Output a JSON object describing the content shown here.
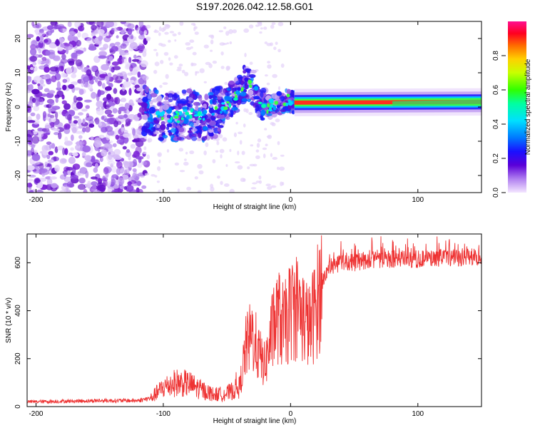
{
  "title": "S197.2026.042.12.58.G01",
  "colors": {
    "snr_line": "#ee3333",
    "axis": "#000000",
    "scatter_purple": "#7a1fd6",
    "scatter_light": "#c9a8f2"
  },
  "chart_data": [
    {
      "type": "heatmap",
      "xlabel": "Height of straight line (km)",
      "ylabel": "Frequency (Hz)",
      "xlim": [
        -207,
        150
      ],
      "ylim": [
        -25,
        25
      ],
      "xticks": [
        -200,
        -100,
        0,
        100
      ],
      "yticks": [
        -20,
        -10,
        0,
        10,
        20
      ],
      "ridge": [
        {
          "x": -110,
          "y": -1
        },
        {
          "x": -100,
          "y": -3
        },
        {
          "x": -90,
          "y": -3
        },
        {
          "x": -80,
          "y": -2
        },
        {
          "x": -70,
          "y": -3
        },
        {
          "x": -60,
          "y": -2
        },
        {
          "x": -50,
          "y": 1
        },
        {
          "x": -42,
          "y": 4
        },
        {
          "x": -36,
          "y": 7
        },
        {
          "x": -30,
          "y": 6
        },
        {
          "x": -24,
          "y": 2
        },
        {
          "x": -18,
          "y": 0
        },
        {
          "x": -10,
          "y": 1
        },
        {
          "x": -2,
          "y": 2
        },
        {
          "x": 5,
          "y": 1
        },
        {
          "x": 50,
          "y": 1
        },
        {
          "x": 100,
          "y": 1
        },
        {
          "x": 150,
          "y": 1.5
        }
      ],
      "colorbar": {
        "label": "Normalized spectral amplitude",
        "range": [
          0,
          1
        ],
        "ticks": [
          "0.0",
          "0.2",
          "0.4",
          "0.6",
          "0.8"
        ],
        "tick_values": [
          0.0,
          0.2,
          0.4,
          0.6,
          0.8
        ]
      }
    },
    {
      "type": "line",
      "xlabel": "Height of straight line (km)",
      "ylabel": "SNR (10 * v/v)",
      "xlim": [
        -207,
        150
      ],
      "ylim": [
        0,
        720
      ],
      "xticks": [
        -200,
        -100,
        0,
        100
      ],
      "yticks": [
        0,
        200,
        400,
        600
      ],
      "series": [
        {
          "name": "SNR",
          "x": [
            -207,
            -180,
            -150,
            -120,
            -110,
            -100,
            -90,
            -80,
            -70,
            -60,
            -50,
            -40,
            -35,
            -30,
            -25,
            -20,
            -15,
            -10,
            -5,
            0,
            5,
            10,
            15,
            20,
            25,
            30,
            40,
            50,
            60,
            80,
            100,
            120,
            150
          ],
          "y": [
            20,
            22,
            25,
            25,
            35,
            80,
            100,
            95,
            70,
            50,
            55,
            80,
            250,
            300,
            220,
            170,
            300,
            380,
            330,
            400,
            420,
            380,
            330,
            420,
            520,
            580,
            600,
            600,
            610,
            615,
            615,
            620,
            625
          ]
        }
      ]
    }
  ]
}
